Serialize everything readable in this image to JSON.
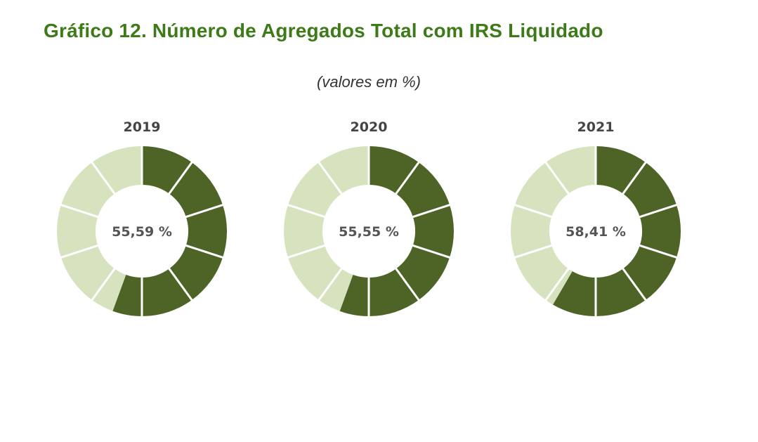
{
  "header": {
    "title": "Gráfico 12. Número de Agregados Total com IRS Liquidado",
    "subtitle": "(valores em %)"
  },
  "colors": {
    "title": "#3d7a18",
    "dark_segment": "#4e6426",
    "light_segment": "#d7e3bf",
    "separator": "#ffffff"
  },
  "chart_data": [
    {
      "type": "pie",
      "title": "2019",
      "value": 55.59,
      "center_label": "55,59 %",
      "segments": 10
    },
    {
      "type": "pie",
      "title": "2020",
      "value": 55.55,
      "center_label": "55,55 %",
      "segments": 10
    },
    {
      "type": "pie",
      "title": "2021",
      "value": 58.41,
      "center_label": "58,41 %",
      "segments": 10
    }
  ]
}
